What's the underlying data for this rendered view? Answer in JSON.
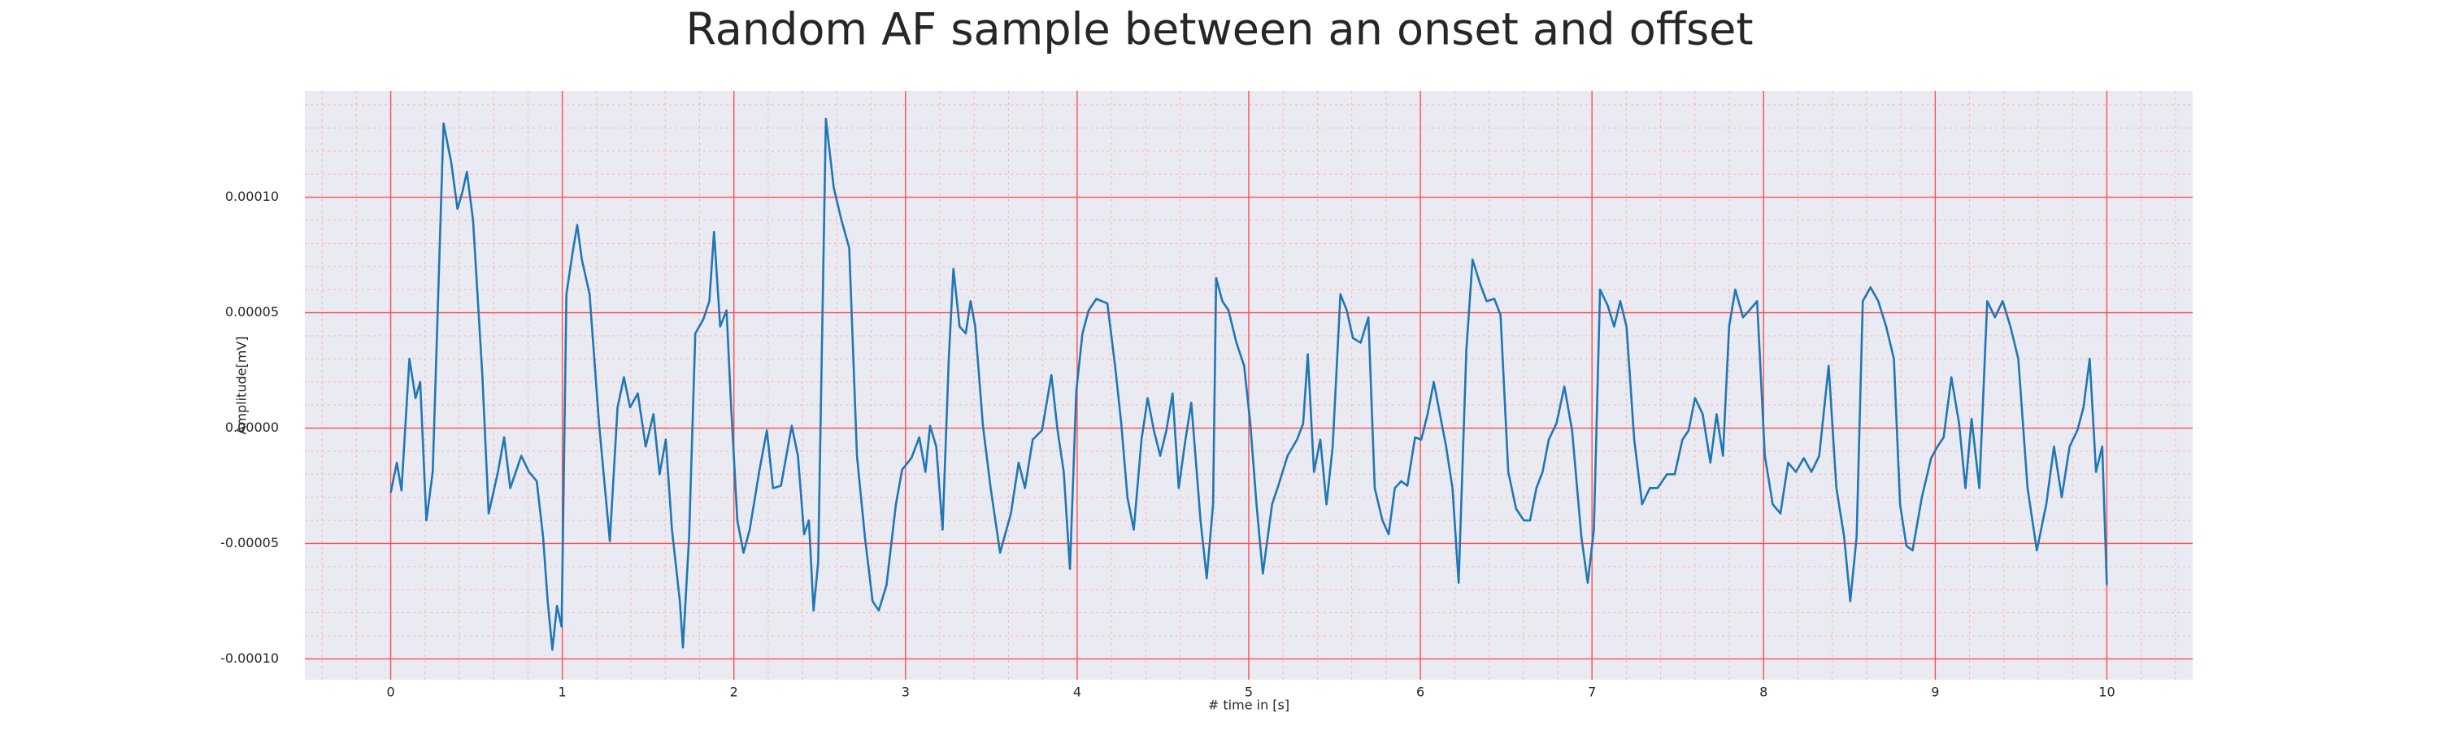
{
  "chart_data": {
    "type": "line",
    "title": "Random AF sample between an onset and offset",
    "xlabel": "# time in [s]",
    "ylabel": "Amplitude[mV]",
    "color": "#1f77b4",
    "grid": true,
    "grid_color": "#ff4d4d",
    "minor_grid": true,
    "background": "#eaeaf2",
    "xlim": [
      -0.5,
      10.5
    ],
    "xticks": [
      0,
      1,
      2,
      3,
      4,
      5,
      6,
      7,
      8,
      9,
      10
    ],
    "ylim": [
      -0.000109,
      0.000146
    ],
    "yticks": [
      {
        "value": -0.0001,
        "label": "-0.00010"
      },
      {
        "value": -5e-05,
        "label": "-0.00005"
      },
      {
        "value": 0,
        "label": "0.00000"
      },
      {
        "value": 5e-05,
        "label": "0.00005"
      },
      {
        "value": 0.0001,
        "label": "0.00010"
      }
    ],
    "x": [
      0,
      0.036,
      0.063,
      0.109,
      0.145,
      0.172,
      0.208,
      0.245,
      0.308,
      0.353,
      0.389,
      0.417,
      0.444,
      0.48,
      0.534,
      0.571,
      0.625,
      0.661,
      0.697,
      0.761,
      0.806,
      0.851,
      0.888,
      0.915,
      0.942,
      0.969,
      0.996,
      1.024,
      1.06,
      1.087,
      1.114,
      1.159,
      1.214,
      1.277,
      1.322,
      1.359,
      1.395,
      1.44,
      1.486,
      1.531,
      1.567,
      1.603,
      1.639,
      1.685,
      1.703,
      1.739,
      1.775,
      1.821,
      1.857,
      1.884,
      1.92,
      1.957,
      1.984,
      2.02,
      2.056,
      2.092,
      2.147,
      2.192,
      2.228,
      2.274,
      2.337,
      2.373,
      2.409,
      2.437,
      2.464,
      2.491,
      2.536,
      2.582,
      2.627,
      2.672,
      2.717,
      2.763,
      2.808,
      2.844,
      2.889,
      2.944,
      2.98,
      3.034,
      3.08,
      3.116,
      3.143,
      3.179,
      3.216,
      3.252,
      3.279,
      3.315,
      3.351,
      3.379,
      3.406,
      3.451,
      3.496,
      3.551,
      3.614,
      3.659,
      3.696,
      3.741,
      3.795,
      3.85,
      3.886,
      3.922,
      3.958,
      3.995,
      4.031,
      4.067,
      4.112,
      4.176,
      4.221,
      4.257,
      4.293,
      4.33,
      4.375,
      4.411,
      4.447,
      4.484,
      4.52,
      4.556,
      4.592,
      4.629,
      4.665,
      4.719,
      4.755,
      4.792,
      4.81,
      4.846,
      4.882,
      4.928,
      4.973,
      5.009,
      5.045,
      5.082,
      5.136,
      5.172,
      5.226,
      5.281,
      5.317,
      5.344,
      5.38,
      5.417,
      5.453,
      5.489,
      5.534,
      5.571,
      5.607,
      5.652,
      5.697,
      5.734,
      5.779,
      5.815,
      5.851,
      5.888,
      5.924,
      5.969,
      6.005,
      6.042,
      6.078,
      6.114,
      6.15,
      6.187,
      6.223,
      6.268,
      6.304,
      6.35,
      6.386,
      6.431,
      6.467,
      6.512,
      6.558,
      6.603,
      6.639,
      6.676,
      6.712,
      6.748,
      6.793,
      6.839,
      6.884,
      6.938,
      6.975,
      7.011,
      7.047,
      7.092,
      7.129,
      7.165,
      7.201,
      7.246,
      7.292,
      7.337,
      7.382,
      7.437,
      7.482,
      7.527,
      7.563,
      7.6,
      7.645,
      7.69,
      7.726,
      7.763,
      7.799,
      7.835,
      7.88,
      7.917,
      7.962,
      8.007,
      8.053,
      8.098,
      8.143,
      8.188,
      8.234,
      8.279,
      8.324,
      8.379,
      8.424,
      8.469,
      8.505,
      8.542,
      8.578,
      8.623,
      8.668,
      8.714,
      8.759,
      8.795,
      8.832,
      8.868,
      8.922,
      8.976,
      9.013,
      9.049,
      9.094,
      9.139,
      9.176,
      9.212,
      9.257,
      9.303,
      9.348,
      9.393,
      9.438,
      9.484,
      9.538,
      9.592,
      9.647,
      9.692,
      9.737,
      9.783,
      9.828,
      9.864,
      9.9,
      9.937,
      9.973,
      10.0
    ],
    "values": [
      -2.8e-05,
      -1.5e-05,
      -2.7e-05,
      3e-05,
      1.3e-05,
      2e-05,
      -4e-05,
      -1.9e-05,
      0.000132,
      0.000115,
      9.5e-05,
      0.000102,
      0.000111,
      9e-05,
      2.3e-05,
      -3.7e-05,
      -1.9e-05,
      -4e-06,
      -2.6e-05,
      -1.2e-05,
      -1.9e-05,
      -2.3e-05,
      -4.7e-05,
      -7.5e-05,
      -9.6e-05,
      -7.7e-05,
      -8.6e-05,
      5.8e-05,
      7.6e-05,
      8.8e-05,
      7.3e-05,
      5.8e-05,
      2e-06,
      -4.9e-05,
      9e-06,
      2.2e-05,
      9e-06,
      1.5e-05,
      -8e-06,
      6e-06,
      -2e-05,
      -5e-06,
      -4.4e-05,
      -7.5e-05,
      -9.5e-05,
      -4.7e-05,
      4.1e-05,
      4.7e-05,
      5.5e-05,
      8.5e-05,
      4.4e-05,
      5.1e-05,
      9e-06,
      -4e-05,
      -5.4e-05,
      -4.4e-05,
      -1.9e-05,
      -1e-06,
      -2.6e-05,
      -2.5e-05,
      1e-06,
      -1.2e-05,
      -4.6e-05,
      -4e-05,
      -7.9e-05,
      -5.8e-05,
      0.000134,
      0.000104,
      9e-05,
      7.8e-05,
      -1.2e-05,
      -4.7e-05,
      -7.5e-05,
      -7.9e-05,
      -6.8e-05,
      -3.3e-05,
      -1.8e-05,
      -1.3e-05,
      -4e-06,
      -1.9e-05,
      1e-06,
      -8e-06,
      -4.4e-05,
      3e-05,
      6.9e-05,
      4.4e-05,
      4.1e-05,
      5.5e-05,
      4.4e-05,
      1e-06,
      -2.6e-05,
      -5.4e-05,
      -3.7e-05,
      -1.5e-05,
      -2.6e-05,
      -5e-06,
      -1e-06,
      2.3e-05,
      -1e-06,
      -1.9e-05,
      -6.1e-05,
      1.6e-05,
      4.1e-05,
      5.1e-05,
      5.6e-05,
      5.4e-05,
      2.7e-05,
      2e-06,
      -3e-05,
      -4.4e-05,
      -5e-06,
      1.3e-05,
      -1e-06,
      -1.2e-05,
      -1e-06,
      1.5e-05,
      -2.6e-05,
      -6e-06,
      1.1e-05,
      -4e-05,
      -6.5e-05,
      -3.3e-05,
      6.5e-05,
      5.5e-05,
      5.1e-05,
      3.7e-05,
      2.7e-05,
      2e-06,
      -3.3e-05,
      -6.3e-05,
      -3.3e-05,
      -2.5e-05,
      -1.2e-05,
      -5e-06,
      2e-06,
      3.2e-05,
      -1.9e-05,
      -5e-06,
      -3.3e-05,
      -8e-06,
      5.8e-05,
      5.1e-05,
      3.9e-05,
      3.7e-05,
      4.8e-05,
      -2.6e-05,
      -4e-05,
      -4.6e-05,
      -2.6e-05,
      -2.3e-05,
      -2.5e-05,
      -4e-06,
      -5e-06,
      6e-06,
      2e-05,
      6e-06,
      -8e-06,
      -2.6e-05,
      -6.7e-05,
      3.4e-05,
      7.3e-05,
      6.2e-05,
      5.5e-05,
      5.6e-05,
      4.9e-05,
      -1.9e-05,
      -3.5e-05,
      -4e-05,
      -4e-05,
      -2.6e-05,
      -1.9e-05,
      -5e-06,
      2e-06,
      1.8e-05,
      -1e-06,
      -4.7e-05,
      -6.7e-05,
      -4.4e-05,
      6e-05,
      5.3e-05,
      4.4e-05,
      5.5e-05,
      4.4e-05,
      -5e-06,
      -3.3e-05,
      -2.6e-05,
      -2.6e-05,
      -2e-05,
      -2e-05,
      -5e-06,
      -1e-06,
      1.3e-05,
      6e-06,
      -1.5e-05,
      6e-06,
      -1.2e-05,
      4.4e-05,
      6e-05,
      4.8e-05,
      5.1e-05,
      5.5e-05,
      -1.2e-05,
      -3.3e-05,
      -3.7e-05,
      -1.5e-05,
      -1.9e-05,
      -1.3e-05,
      -1.9e-05,
      -1.2e-05,
      2.7e-05,
      -2.6e-05,
      -4.7e-05,
      -7.5e-05,
      -4.7e-05,
      5.5e-05,
      6.1e-05,
      5.5e-05,
      4.4e-05,
      3e-05,
      -3.3e-05,
      -5.1e-05,
      -5.3e-05,
      -3e-05,
      -1.3e-05,
      -8e-06,
      -4e-06,
      2.2e-05,
      2e-06,
      -2.6e-05,
      4e-06,
      -2.6e-05,
      5.5e-05,
      4.8e-05,
      5.5e-05,
      4.4e-05,
      3e-05,
      -2.6e-05,
      -5.3e-05,
      -3.3e-05,
      -8e-06,
      -3e-05,
      -8e-06,
      -1e-06,
      9e-06,
      3e-05,
      -1.9e-05,
      -8e-06,
      -6.8e-05
    ]
  }
}
